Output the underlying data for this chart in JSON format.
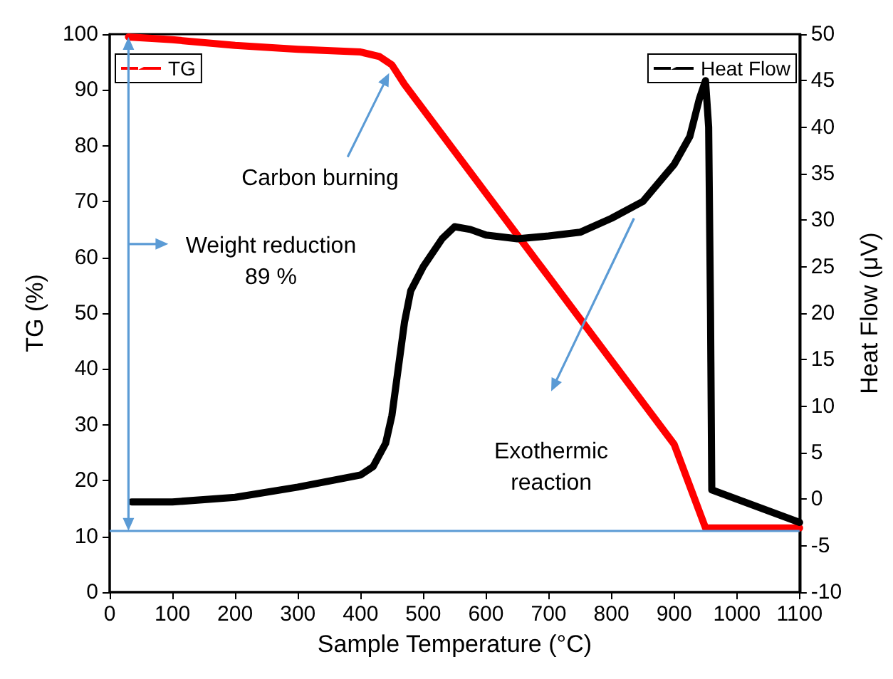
{
  "chart_data": {
    "type": "line",
    "xlabel": "Sample Temperature (°C)",
    "ylabel": "TG (%)",
    "y2label": "Heat Flow (μV)",
    "xlim": [
      0,
      1100
    ],
    "xticks": [
      0,
      100,
      200,
      300,
      400,
      500,
      600,
      700,
      800,
      900,
      1000,
      1100
    ],
    "ylim": [
      0,
      100
    ],
    "yticks": [
      0,
      10,
      20,
      30,
      40,
      50,
      60,
      70,
      80,
      90,
      100
    ],
    "y2lim": [
      -10,
      50
    ],
    "y2ticks": [
      -10,
      -5,
      0,
      5,
      10,
      15,
      20,
      25,
      30,
      35,
      40,
      45,
      50
    ],
    "grid": false,
    "legend": "top",
    "line_style": "solid",
    "marker": "none",
    "series": [
      {
        "name": "TG",
        "color": "#ff0000",
        "x": [
          30,
          100,
          200,
          300,
          400,
          430,
          450,
          470,
          600,
          700,
          800,
          900,
          950,
          1000,
          1100
        ],
        "values": [
          99.5,
          99,
          98,
          97.3,
          96.8,
          96,
          94.5,
          91,
          71.5,
          56.5,
          41.5,
          26.5,
          11.5,
          11.5,
          11.5
        ]
      },
      {
        "name": "Heat Flow",
        "color": "#000000",
        "axis": "y2",
        "x": [
          35,
          100,
          200,
          300,
          400,
          420,
          440,
          450,
          460,
          470,
          480,
          500,
          530,
          550,
          575,
          600,
          650,
          700,
          750,
          800,
          850,
          900,
          925,
          940,
          950,
          955,
          958,
          960,
          1100
        ],
        "values": [
          -0.3,
          -0.3,
          0.2,
          1.3,
          2.6,
          3.5,
          6,
          9,
          14,
          19,
          22.4,
          25,
          28,
          29.3,
          29,
          28.4,
          28,
          28.3,
          28.7,
          30.2,
          32,
          36,
          39,
          43,
          45,
          40,
          20,
          1,
          -2.5
        ]
      }
    ],
    "ref_lines": [
      {
        "axis": "y",
        "value": 11,
        "color": "#5b9bd5"
      }
    ],
    "annotations": [
      "Carbon burning",
      "Exothermic reaction",
      "Weight reduction\n89 %"
    ]
  }
}
